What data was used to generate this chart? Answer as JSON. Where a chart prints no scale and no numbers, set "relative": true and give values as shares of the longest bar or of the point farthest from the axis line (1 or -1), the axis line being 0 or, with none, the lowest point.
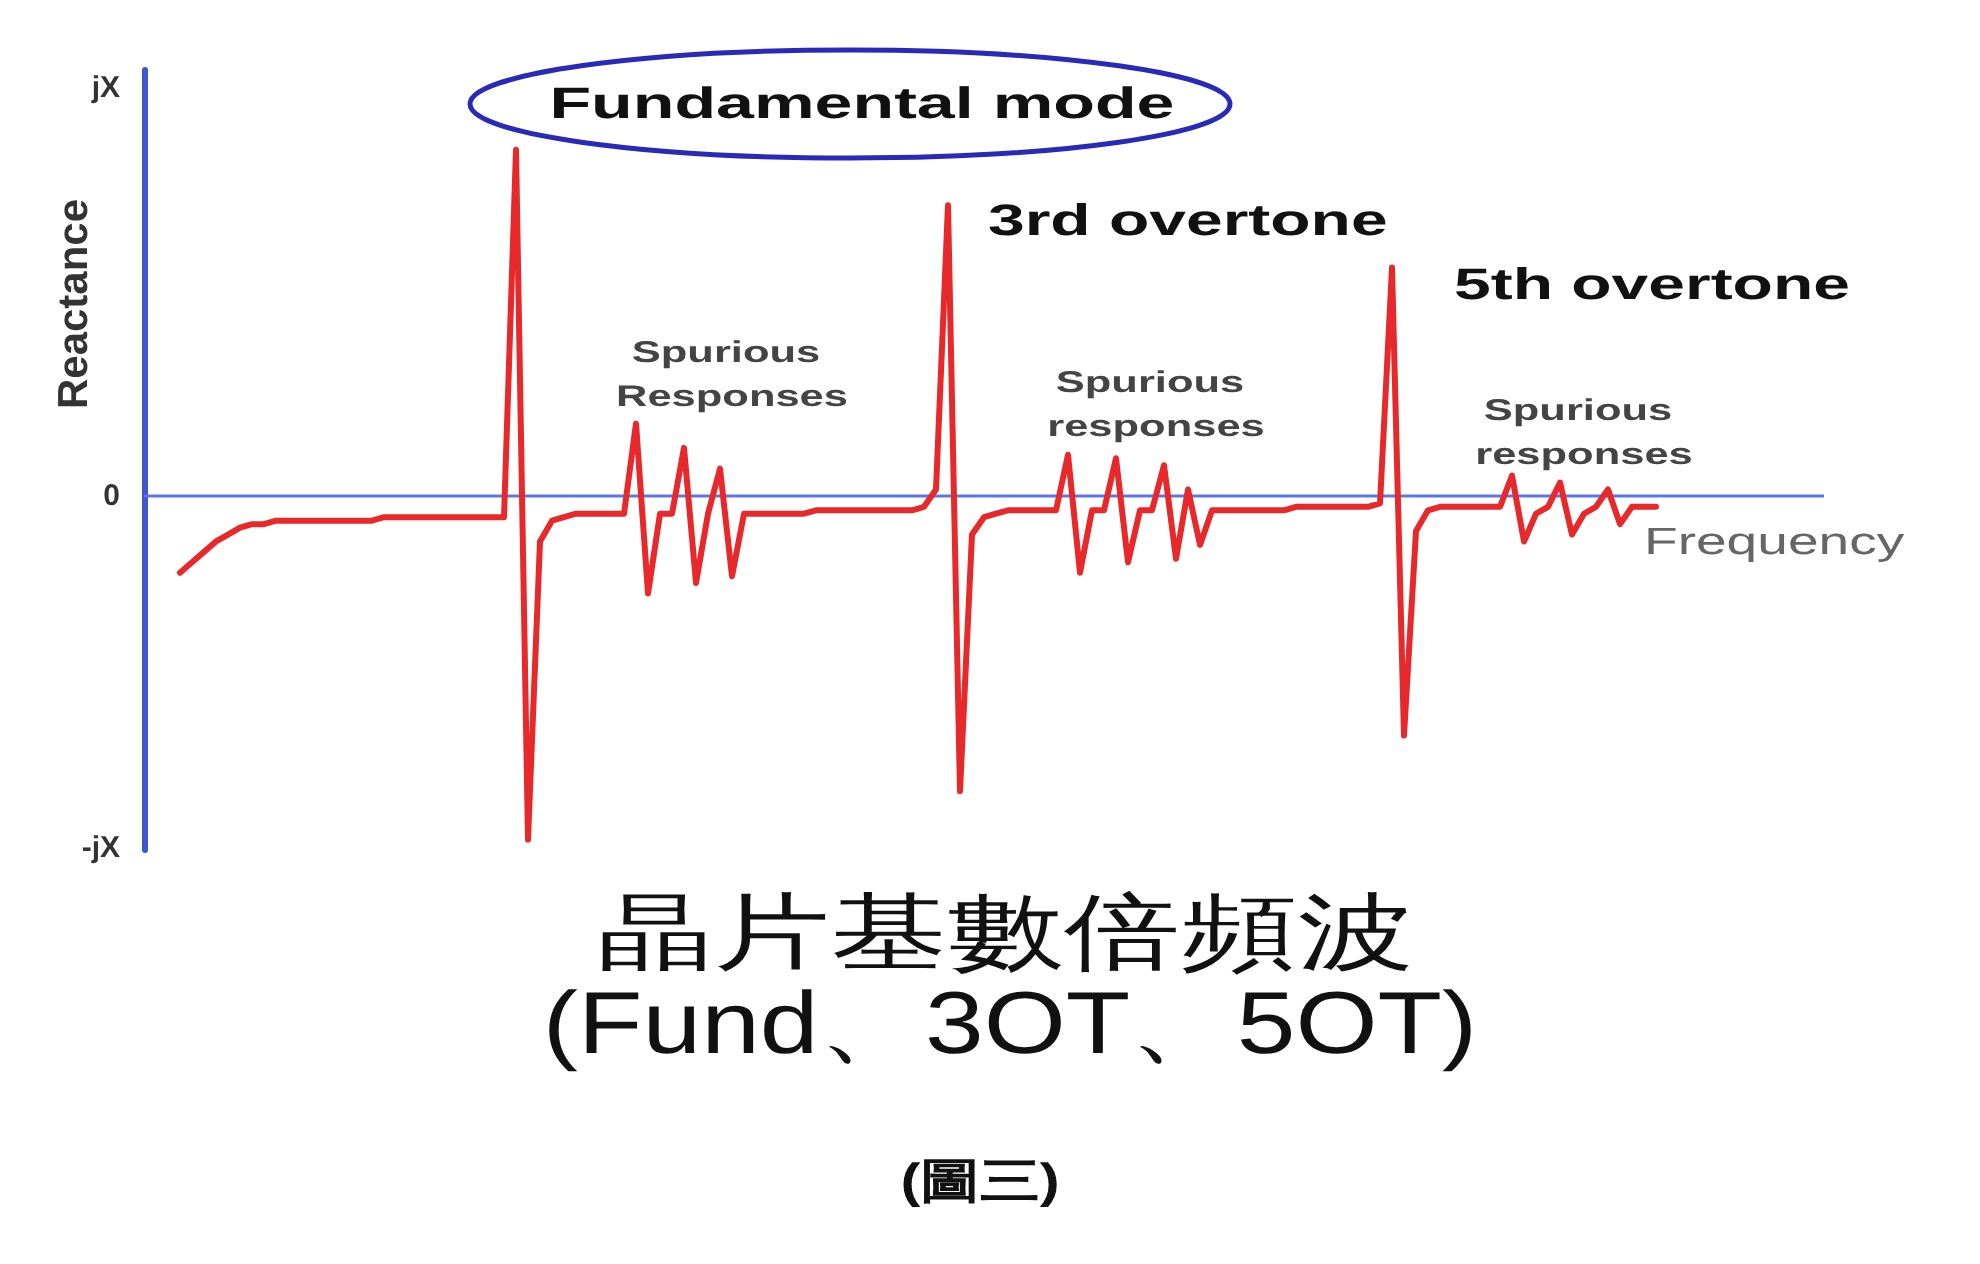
{
  "chart_data": {
    "type": "line",
    "title": "晶片基數倍頻波",
    "subtitle": "(Fund、3OT、5OT)",
    "xlabel": "Frequency",
    "ylabel": "Reactance",
    "annotations": [
      "jX",
      "0",
      "-jX",
      "Fundamental mode",
      "3rd overtone",
      "5th overtone",
      "Spurious Responses",
      "Spurious responses",
      "Spurious responses",
      "(圖三)"
    ],
    "categories": [
      null,
      null,
      null,
      null,
      null,
      null,
      null,
      null,
      null,
      null,
      null,
      null,
      null,
      null,
      null,
      null,
      null,
      null,
      null,
      null,
      null,
      null,
      null,
      null,
      null,
      null,
      null,
      null,
      null,
      null,
      null,
      null,
      null,
      null,
      null,
      null,
      null,
      null,
      null,
      null,
      null,
      null,
      null,
      null,
      null,
      null,
      null,
      null,
      null,
      null,
      null,
      null,
      null,
      null,
      null,
      null,
      null,
      null,
      null,
      null,
      null,
      null,
      null,
      null,
      null,
      null,
      null,
      null,
      null,
      null,
      null,
      null,
      null,
      null,
      null,
      null,
      null,
      null,
      null,
      null,
      null,
      null,
      null,
      null,
      null,
      null,
      null,
      null,
      null,
      null,
      null,
      null,
      null,
      null,
      null,
      null,
      null,
      null,
      null,
      null,
      null,
      null,
      null,
      null,
      null,
      null,
      null,
      null,
      null,
      null,
      null,
      null,
      null,
      null,
      null,
      null,
      null,
      null,
      null,
      null,
      null,
      null,
      null,
      null,
      null,
      null,
      null,
      null,
      null,
      null,
      null,
      null,
      null,
      null,
      null,
      null,
      null,
      null,
      null,
      null,
      null
    ],
    "color": "#e8292b",
    "values": [
      null,
      null,
      null,
      -0.22,
      -0.19,
      -0.16,
      -0.13,
      -0.11,
      -0.09,
      -0.08,
      -0.08,
      -0.07,
      -0.07,
      -0.07,
      -0.07,
      -0.07,
      -0.07,
      -0.07,
      -0.07,
      -0.07,
      -0.06,
      -0.06,
      -0.06,
      -0.06,
      -0.06,
      -0.06,
      -0.06,
      -0.06,
      -0.06,
      -0.06,
      -0.06,
      1,
      -0.99,
      -0.13,
      -0.07,
      -0.06,
      -0.05,
      -0.05,
      -0.05,
      -0.05,
      -0.05,
      0.21,
      -0.28,
      -0.05,
      -0.05,
      0.14,
      -0.25,
      -0.05,
      0.08,
      -0.23,
      -0.05,
      -0.05,
      -0.05,
      -0.05,
      -0.05,
      -0.05,
      -0.04,
      -0.04,
      -0.04,
      -0.04,
      -0.04,
      -0.04,
      -0.04,
      -0.04,
      -0.04,
      -0.03,
      0.02,
      0.84,
      -0.85,
      -0.11,
      -0.06,
      -0.05,
      -0.04,
      -0.04,
      -0.04,
      -0.04,
      -0.04,
      0.12,
      -0.22,
      -0.04,
      -0.04,
      0.11,
      -0.19,
      -0.04,
      -0.04,
      0.09,
      -0.18,
      0.02,
      -0.14,
      -0.04,
      -0.04,
      -0.04,
      -0.04,
      -0.04,
      -0.04,
      -0.04,
      -0.03,
      -0.03,
      -0.03,
      -0.03,
      -0.03,
      -0.03,
      -0.03,
      -0.02,
      0.66,
      -0.69,
      -0.1,
      -0.04,
      -0.03,
      -0.03,
      -0.03,
      -0.03,
      -0.03,
      -0.03,
      0.06,
      -0.13,
      -0.05,
      -0.03,
      0.04,
      -0.11,
      -0.05,
      -0.03,
      0.02,
      -0.08,
      -0.03,
      -0.03,
      -0.03,
      null,
      null,
      null,
      null,
      null,
      null,
      null,
      null,
      null,
      null,
      null,
      null,
      null,
      null
    ],
    "ref_lines": [
      {
        "axis": "y",
        "value": 0,
        "color": "#5b78e6"
      }
    ],
    "relative": true,
    "marker": "none",
    "line_style": "solid"
  }
}
